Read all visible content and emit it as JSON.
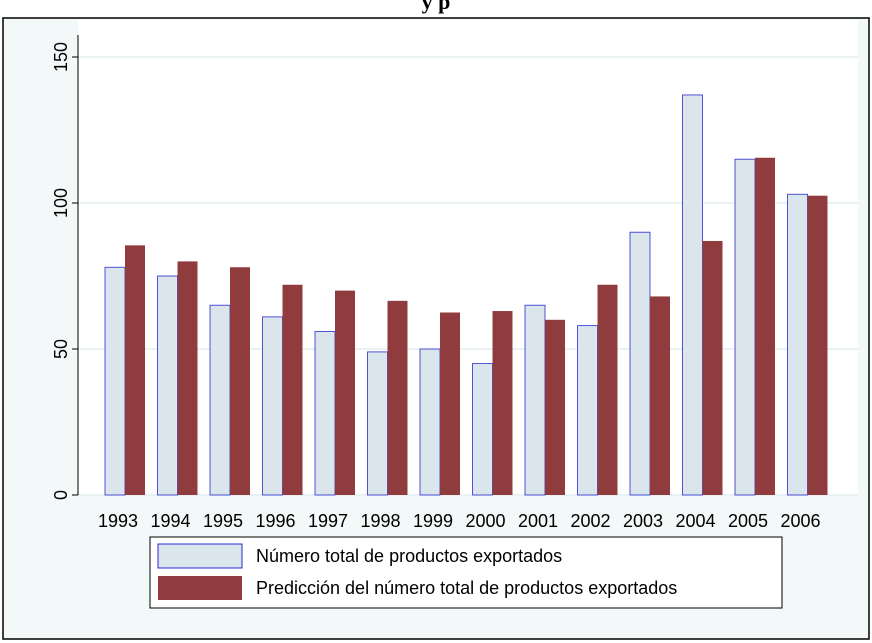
{
  "chart_data": {
    "type": "bar",
    "title": "y p",
    "categories": [
      "1993",
      "1994",
      "1995",
      "1996",
      "1997",
      "1998",
      "1999",
      "2000",
      "2001",
      "2002",
      "2003",
      "2004",
      "2005",
      "2006"
    ],
    "series": [
      {
        "name": "Número total de productos exportados",
        "color": "#dbe6ec",
        "values": [
          78,
          75,
          65,
          61,
          56,
          49,
          50,
          45,
          65,
          58,
          90,
          137,
          115,
          103
        ]
      },
      {
        "name": "Predicción del número total de productos exportados",
        "color": "#903c3e",
        "values": [
          85.5,
          80,
          78,
          72,
          70,
          66.5,
          62.5,
          63,
          60,
          72,
          68,
          87,
          115.5,
          102.5
        ]
      }
    ],
    "ylim": [
      0,
      150
    ],
    "yticks": [
      0,
      50,
      100,
      150
    ],
    "grid": true
  }
}
